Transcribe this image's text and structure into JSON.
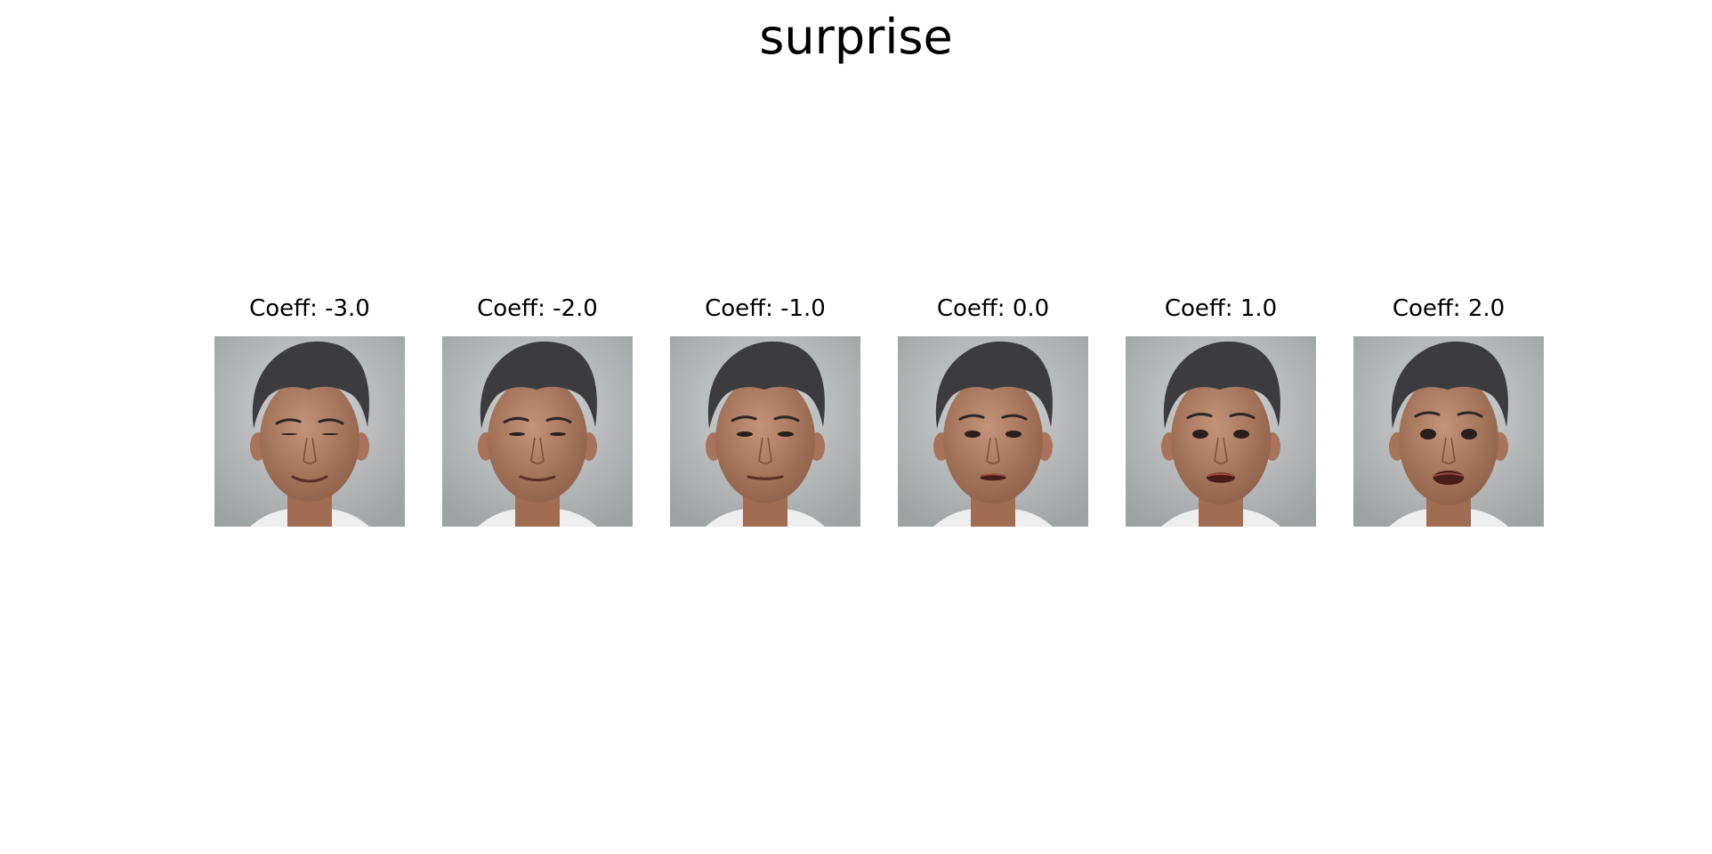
{
  "figure": {
    "title": "surprise"
  },
  "panels": [
    {
      "title": "Coeff: -3.0",
      "coeff": -3.0,
      "eyes": "squint",
      "mouth": "smile"
    },
    {
      "title": "Coeff: -2.0",
      "coeff": -2.0,
      "eyes": "squint",
      "mouth": "smile"
    },
    {
      "title": "Coeff: -1.0",
      "coeff": -1.0,
      "eyes": "narrow",
      "mouth": "slight-smile"
    },
    {
      "title": "Coeff: 0.0",
      "coeff": 0.0,
      "eyes": "neutral",
      "mouth": "slightly-open"
    },
    {
      "title": "Coeff: 1.0",
      "coeff": 1.0,
      "eyes": "open",
      "mouth": "open"
    },
    {
      "title": "Coeff: 2.0",
      "coeff": 2.0,
      "eyes": "wide",
      "mouth": "wide-open"
    }
  ],
  "colors": {
    "background": "#ffffff",
    "photo_background": "#b9bcbd",
    "skin": "#b07e62",
    "hair": "#3c3c3e",
    "shirt": "#eeeeee"
  }
}
